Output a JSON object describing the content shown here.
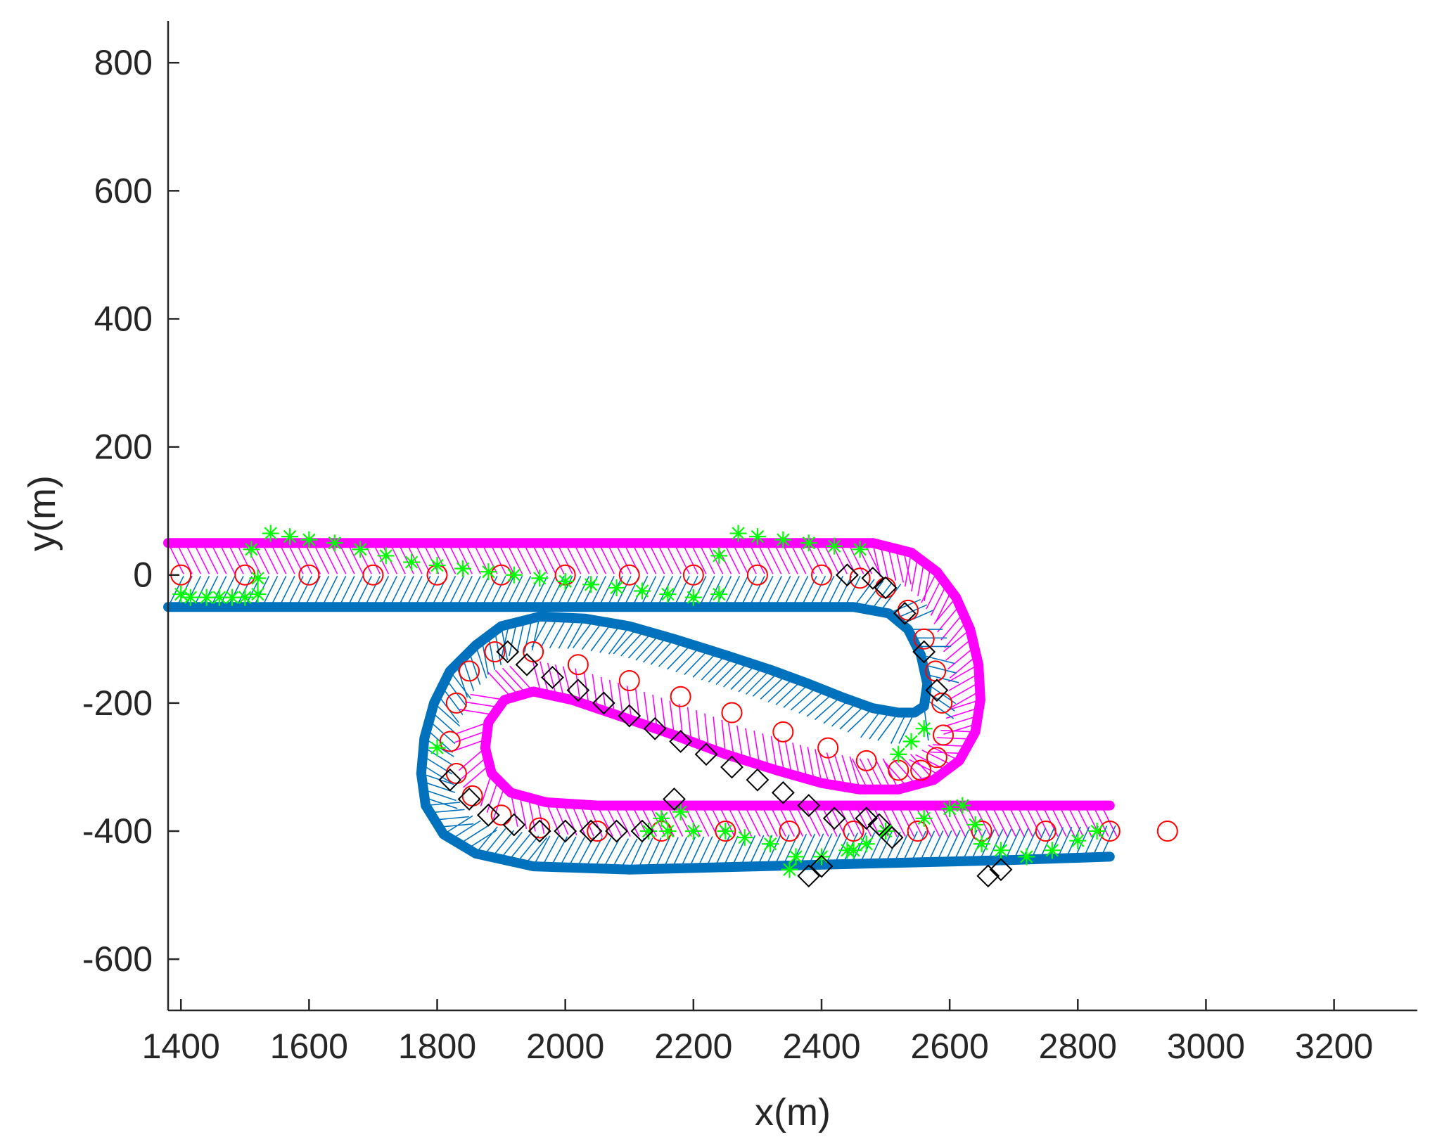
{
  "chart_data": {
    "type": "scatter",
    "title": "",
    "xlabel": "x(m)",
    "ylabel": "y(m)",
    "xlim": [
      1380,
      3330
    ],
    "ylim": [
      -680,
      865
    ],
    "xticks": [
      1400,
      1600,
      1800,
      2000,
      2200,
      2400,
      2600,
      2800,
      3000,
      3200
    ],
    "yticks": [
      -600,
      -400,
      -200,
      0,
      200,
      400,
      600,
      800
    ],
    "xtick_labels": [
      "1400",
      "1600",
      "1800",
      "2000",
      "2200",
      "2400",
      "2600",
      "2800",
      "3000",
      "3200"
    ],
    "ytick_labels": [
      "-600",
      "-400",
      "-200",
      "0",
      "200",
      "400",
      "600",
      "800"
    ],
    "grid": false,
    "colors": {
      "centerline": "#ff0000",
      "upper_boundary": "#ff00ff",
      "lower_boundary": "#0072bd",
      "green_agents": "#00ff00",
      "black_agents": "#000000"
    },
    "centerline": {
      "marker": "circle",
      "x": [
        1400,
        1500,
        1600,
        1700,
        1800,
        1900,
        2000,
        2100,
        2200,
        2300,
        2400,
        2460,
        2500,
        2535,
        2560,
        2578,
        2588,
        2590,
        2580,
        2555,
        2520,
        2470,
        2410,
        2340,
        2260,
        2180,
        2100,
        2020,
        1950,
        1890,
        1850,
        1830,
        1820,
        1830,
        1855,
        1900,
        1960,
        2050,
        2150,
        2250,
        2350,
        2450,
        2550,
        2650,
        2750,
        2850,
        2940
      ],
      "y": [
        0,
        0,
        0,
        0,
        0,
        0,
        0,
        0,
        0,
        0,
        0,
        -5,
        -20,
        -55,
        -100,
        -150,
        -200,
        -250,
        -285,
        -305,
        -305,
        -290,
        -270,
        -245,
        -215,
        -190,
        -165,
        -140,
        -120,
        -120,
        -150,
        -200,
        -260,
        -310,
        -345,
        -375,
        -395,
        -400,
        -400,
        -400,
        -400,
        -400,
        -400,
        -400,
        -400,
        -400,
        -400
      ]
    },
    "upper_boundary": {
      "x": [
        1380,
        1700,
        2000,
        2300,
        2480,
        2540,
        2580,
        2610,
        2632,
        2645,
        2648,
        2640,
        2615,
        2575,
        2520,
        2460,
        2400,
        2330,
        2250,
        2170,
        2090,
        2010,
        1950,
        1905,
        1880,
        1875,
        1885,
        1915,
        1970,
        2050,
        2200,
        2400,
        2600,
        2850
      ],
      "y": [
        50,
        50,
        50,
        50,
        50,
        35,
        5,
        -35,
        -85,
        -140,
        -195,
        -245,
        -290,
        -320,
        -335,
        -335,
        -325,
        -305,
        -280,
        -250,
        -222,
        -195,
        -182,
        -195,
        -230,
        -270,
        -310,
        -340,
        -355,
        -360,
        -360,
        -360,
        -360,
        -360
      ]
    },
    "lower_boundary": {
      "x": [
        1380,
        1700,
        2000,
        2300,
        2450,
        2505,
        2535,
        2555,
        2565,
        2560,
        2545,
        2520,
        2480,
        2430,
        2380,
        2320,
        2250,
        2170,
        2100,
        2030,
        1960,
        1900,
        1860,
        1820,
        1795,
        1780,
        1775,
        1782,
        1810,
        1860,
        1950,
        2100,
        2300,
        2500,
        2700,
        2850
      ],
      "y": [
        -50,
        -50,
        -50,
        -50,
        -50,
        -60,
        -85,
        -125,
        -170,
        -205,
        -215,
        -215,
        -208,
        -190,
        -170,
        -148,
        -125,
        -100,
        -80,
        -68,
        -65,
        -80,
        -110,
        -150,
        -200,
        -255,
        -310,
        -360,
        -405,
        -435,
        -455,
        -460,
        -455,
        -450,
        -445,
        -440
      ]
    },
    "green_agents": {
      "marker": "asterisk",
      "x": [
        1400,
        1440,
        1480,
        1520,
        1540,
        1570,
        1600,
        1640,
        1680,
        1720,
        1760,
        1800,
        1840,
        1880,
        1920,
        1960,
        2000,
        2040,
        2080,
        2120,
        2160,
        2200,
        2240,
        2240,
        2270,
        2300,
        2340,
        2380,
        2420,
        2460,
        1415,
        1460,
        1500,
        1520,
        1510,
        1800,
        2560,
        2540,
        2520,
        2500,
        2470,
        2440,
        2400,
        2360,
        2320,
        2280,
        2250,
        2200,
        2160,
        2130,
        2150,
        2180,
        2350,
        2450,
        2500,
        2560,
        2600,
        2620,
        2640,
        2650,
        2680,
        2720,
        2760,
        2800,
        2830
      ],
      "y": [
        -30,
        -35,
        -35,
        -30,
        65,
        60,
        55,
        50,
        40,
        30,
        20,
        15,
        10,
        5,
        0,
        -5,
        -10,
        -15,
        -20,
        -25,
        -30,
        -35,
        -30,
        30,
        65,
        60,
        55,
        50,
        45,
        40,
        -35,
        -35,
        -35,
        -5,
        40,
        -270,
        -240,
        -260,
        -280,
        -400,
        -420,
        -430,
        -440,
        -440,
        -420,
        -410,
        -400,
        -400,
        -400,
        -400,
        -380,
        -370,
        -460,
        -430,
        -400,
        -380,
        -365,
        -360,
        -390,
        -420,
        -430,
        -440,
        -430,
        -415,
        -400
      ]
    },
    "black_agents": {
      "marker": "diamond",
      "x": [
        2440,
        2480,
        2500,
        2530,
        2560,
        2580,
        1910,
        1940,
        1980,
        2020,
        2060,
        2100,
        2140,
        2180,
        2220,
        2260,
        2300,
        2340,
        2380,
        2420,
        1820,
        1850,
        1880,
        1920,
        1960,
        2000,
        2040,
        2080,
        2120,
        2170,
        2380,
        2400,
        2470,
        2490,
        2510,
        2660,
        2680
      ],
      "y": [
        0,
        -5,
        -20,
        -60,
        -120,
        -180,
        -120,
        -140,
        -160,
        -180,
        -200,
        -220,
        -240,
        -260,
        -280,
        -300,
        -320,
        -340,
        -360,
        -380,
        -320,
        -350,
        -375,
        -390,
        -400,
        -400,
        -400,
        -400,
        -400,
        -350,
        -470,
        -455,
        -380,
        -390,
        -410,
        -470,
        -460
      ]
    }
  }
}
